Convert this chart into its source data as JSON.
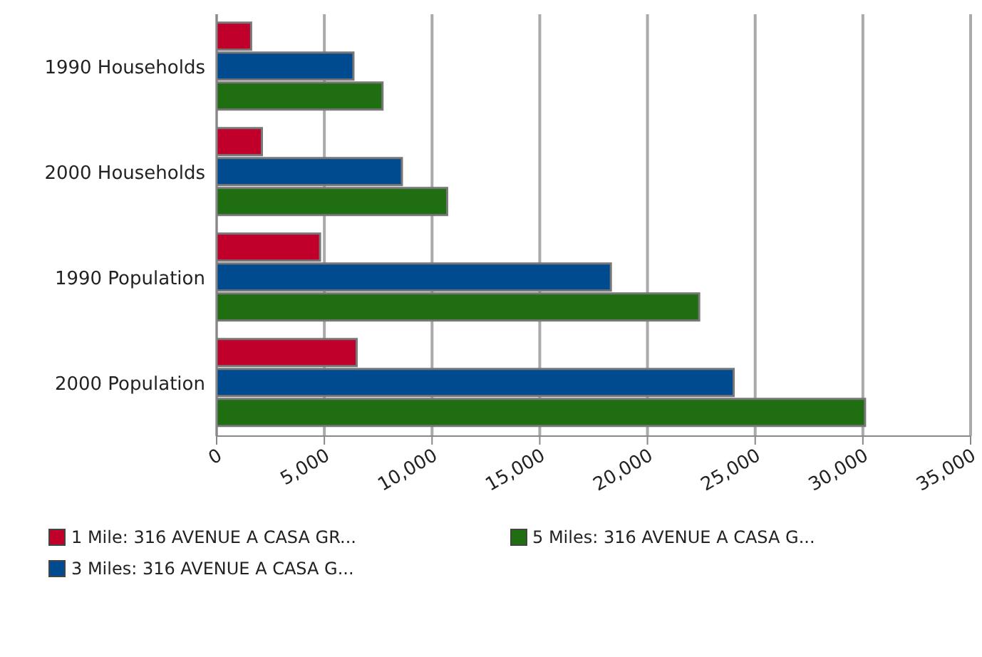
{
  "chart_data": {
    "type": "bar",
    "orientation": "horizontal",
    "categories": [
      "1990 Households",
      "2000 Households",
      "1990 Population",
      "2000 Population"
    ],
    "series": [
      {
        "name": "1 Mile: 316 AVENUE A CASA GR...",
        "color": "#c0002a",
        "values": [
          1600,
          2100,
          4800,
          6500
        ]
      },
      {
        "name": "3 Miles: 316 AVENUE A CASA G...",
        "color": "#004a90",
        "values": [
          6350,
          8600,
          18300,
          24000
        ]
      },
      {
        "name": "5 Miles: 316 AVENUE A CASA G...",
        "color": "#1f6e12",
        "values": [
          7700,
          10700,
          22400,
          30100
        ]
      }
    ],
    "xlim": [
      0,
      35000
    ],
    "xticks": [
      0,
      {
        "value": 5000,
        "label": "5,000"
      },
      {
        "value": 10000,
        "label": "10,000"
      },
      {
        "value": 15000,
        "label": "15,000"
      },
      {
        "value": 20000,
        "label": "20,000"
      },
      {
        "value": 25000,
        "label": "25,000"
      },
      {
        "value": 30000,
        "label": "30,000"
      },
      {
        "value": 35000,
        "label": "35,000"
      }
    ],
    "grid": "x",
    "legend": "bottom"
  }
}
